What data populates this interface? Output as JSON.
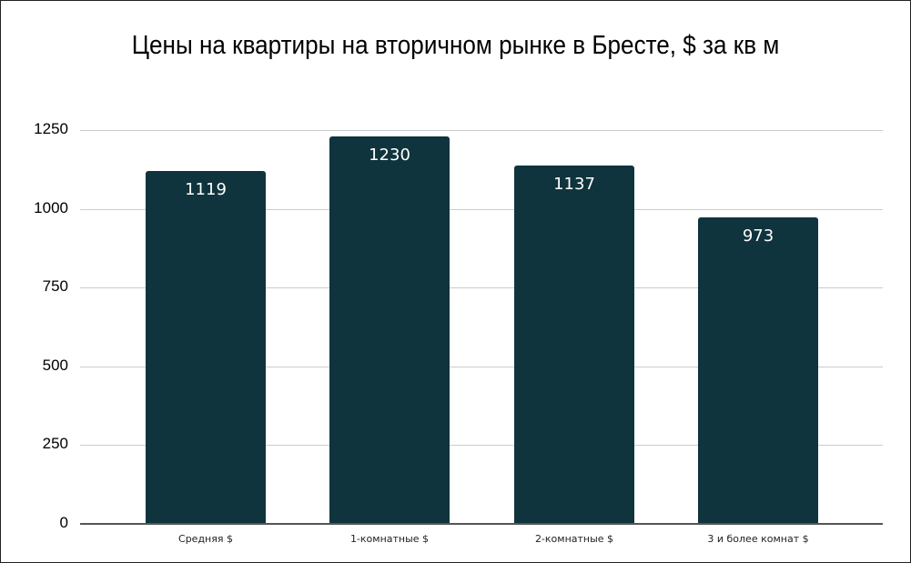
{
  "chart_data": {
    "type": "bar",
    "title": "Цены на квартиры на вторичном рынке в Бресте, $ за кв м",
    "categories": [
      "Средняя $",
      "1-комнатные $",
      "2-комнатные $",
      "3 и более комнат $"
    ],
    "values": [
      1119,
      1230,
      1137,
      973
    ],
    "xlabel": "",
    "ylabel": "",
    "ylim": [
      0,
      1250
    ],
    "yticks": [
      "0",
      "250",
      "500",
      "750",
      "1000",
      "1250"
    ],
    "grid": true,
    "legend": "none",
    "bar_color": "#0f343d"
  }
}
